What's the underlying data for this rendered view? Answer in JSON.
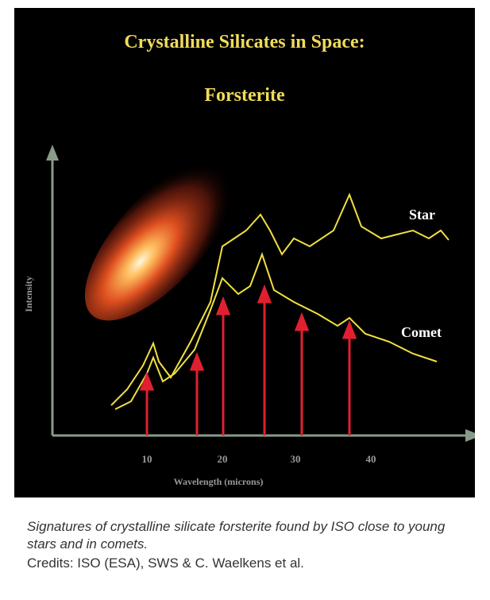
{
  "figure": {
    "title": "Crystalline Silicates in Space:",
    "subtitle": "Forsterite",
    "y_label": "Intensity",
    "x_label": "Wavelength  (microns)",
    "x_ticks": [
      "10",
      "20",
      "30",
      "40"
    ],
    "curve_labels": [
      "Star",
      "Comet"
    ]
  },
  "caption": {
    "description": "Signatures of crystalline silicate forsterite found by ISO close to young stars and in comets.",
    "credits": "Credits: ISO (ESA), SWS & C. Waelkens et al."
  }
}
